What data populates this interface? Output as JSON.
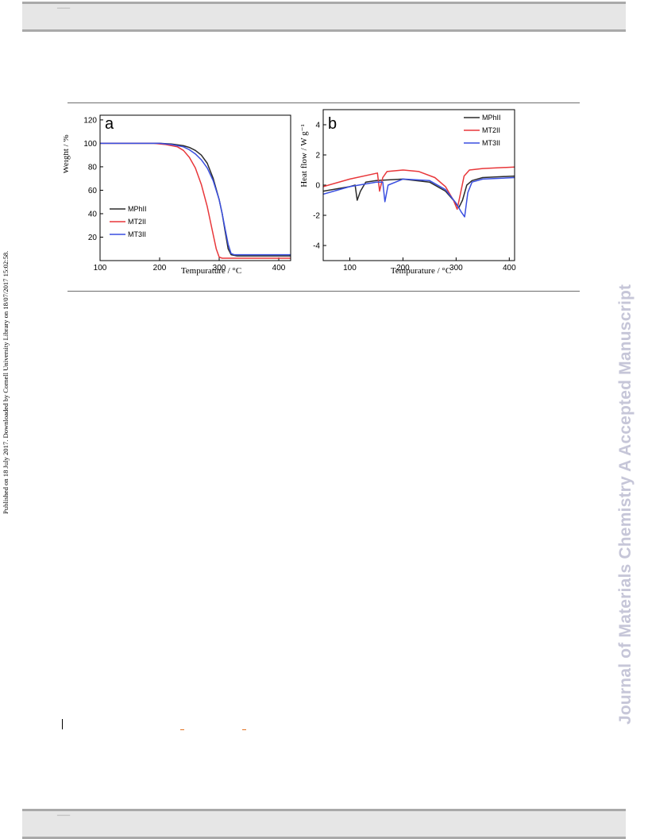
{
  "page": {
    "side_text": "Published on 18 July 2017. Downloaded by Cornell University Library on 18/07/2017 15:02:58.",
    "watermark": "Journal of Materials Chemistry A Accepted Manuscript"
  },
  "colors": {
    "MPhII": "#2b2b2b",
    "MT2II": "#e8373a",
    "MT3II": "#3a4fe0",
    "watermark": "#c6c6d8",
    "bar": "#e6e6e6"
  },
  "chart_data": [
    {
      "type": "line",
      "panel_label": "a",
      "xlabel": "Tempuraturе / °C",
      "ylabel": "Weight / %",
      "xlim": [
        100,
        420
      ],
      "ylim": [
        0,
        124
      ],
      "xticks": [
        100,
        200,
        300,
        400
      ],
      "yticks": [
        20,
        40,
        60,
        80,
        100,
        120
      ],
      "legend_position": "bottom-left",
      "legend": [
        "MPhII",
        "MT2II",
        "MT3II"
      ],
      "series": [
        {
          "name": "MPhII",
          "color": "#2b2b2b",
          "x": [
            100,
            200,
            220,
            240,
            250,
            260,
            270,
            280,
            290,
            300,
            305,
            310,
            315,
            320,
            330,
            420
          ],
          "y": [
            100,
            100,
            99.5,
            98,
            96.5,
            94,
            90,
            83,
            70,
            52,
            40,
            25,
            10,
            5,
            4,
            4
          ]
        },
        {
          "name": "MT2II",
          "color": "#e8373a",
          "x": [
            100,
            190,
            210,
            230,
            240,
            250,
            260,
            270,
            280,
            290,
            295,
            300,
            305,
            420
          ],
          "y": [
            100,
            100,
            99,
            97,
            94,
            88,
            79,
            65,
            46,
            22,
            10,
            3,
            2,
            2
          ]
        },
        {
          "name": "MT3II",
          "color": "#3a4fe0",
          "x": [
            100,
            200,
            220,
            240,
            250,
            260,
            270,
            280,
            290,
            300,
            305,
            310,
            315,
            320,
            325,
            420
          ],
          "y": [
            100,
            100,
            99,
            97,
            94.5,
            91,
            86,
            79,
            68,
            52,
            40,
            27,
            14,
            6,
            5,
            5
          ]
        }
      ]
    },
    {
      "type": "line",
      "panel_label": "b",
      "xlabel": "Tempuraturе / °C",
      "ylabel": "Heat flow / W g⁻¹",
      "xlim": [
        50,
        410
      ],
      "ylim": [
        -5,
        5
      ],
      "xticks": [
        100,
        200,
        300,
        400
      ],
      "yticks": [
        -4,
        -2,
        0,
        2,
        4
      ],
      "legend_position": "top-right",
      "legend": [
        "MPhII",
        "MT2II",
        "MT3II"
      ],
      "series": [
        {
          "name": "MPhII",
          "color": "#2b2b2b",
          "x": [
            50,
            100,
            110,
            114,
            120,
            130,
            150,
            200,
            250,
            280,
            295,
            305,
            312,
            320,
            330,
            350,
            410
          ],
          "y": [
            -0.4,
            -0.1,
            0.0,
            -1.0,
            -0.4,
            0.2,
            0.3,
            0.4,
            0.2,
            -0.4,
            -1.0,
            -1.5,
            -1.0,
            0.0,
            0.3,
            0.5,
            0.6
          ]
        },
        {
          "name": "MT2II",
          "color": "#e8373a",
          "x": [
            50,
            100,
            152,
            156,
            158,
            162,
            170,
            200,
            230,
            260,
            280,
            295,
            302,
            308,
            315,
            325,
            350,
            410
          ],
          "y": [
            -0.1,
            0.4,
            0.8,
            -0.4,
            -0.1,
            0.5,
            0.9,
            1.0,
            0.9,
            0.5,
            -0.1,
            -1.0,
            -1.6,
            -0.6,
            0.6,
            1.0,
            1.1,
            1.2
          ]
        },
        {
          "name": "MT3II",
          "color": "#3a4fe0",
          "x": [
            50,
            100,
            150,
            162,
            166,
            172,
            200,
            250,
            280,
            300,
            310,
            316,
            322,
            330,
            350,
            410
          ],
          "y": [
            -0.6,
            -0.1,
            0.2,
            0.2,
            -1.1,
            0.0,
            0.4,
            0.3,
            -0.3,
            -1.2,
            -1.8,
            -2.1,
            -0.5,
            0.2,
            0.4,
            0.5
          ]
        }
      ]
    }
  ]
}
